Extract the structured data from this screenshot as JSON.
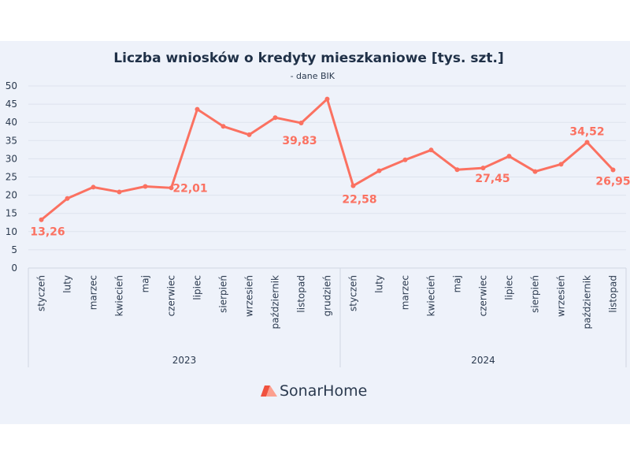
{
  "chart_data": {
    "type": "line",
    "title": "Liczba wniosków o kredyty mieszkaniowe [tys. szt.]",
    "subtitle": "- dane BIK",
    "ylim": [
      0,
      50
    ],
    "yticks": [
      0,
      5,
      10,
      15,
      20,
      25,
      30,
      35,
      40,
      45,
      50
    ],
    "grid": true,
    "color": "#fb7161",
    "groups": [
      {
        "label": "2023",
        "categories": [
          "styczeń",
          "luty",
          "marzec",
          "kwiecień",
          "maj",
          "czerwiec",
          "lipiec",
          "sierpień",
          "wrzesień",
          "październik",
          "listopad",
          "grudzień"
        ]
      },
      {
        "label": "2024",
        "categories": [
          "styczeń",
          "luty",
          "marzec",
          "kwiecień",
          "maj",
          "czerwiec",
          "lipiec",
          "sierpień",
          "wrzesień",
          "październik",
          "listopad"
        ]
      }
    ],
    "values": [
      13.26,
      19.1,
      22.2,
      20.9,
      22.4,
      22.01,
      43.6,
      38.9,
      36.6,
      41.3,
      39.83,
      46.4,
      22.58,
      26.7,
      29.7,
      32.4,
      27.0,
      27.45,
      30.7,
      26.5,
      28.5,
      34.52,
      26.95
    ],
    "data_labels": [
      {
        "index": 0,
        "text": "13,26"
      },
      {
        "index": 5,
        "text": "22,01"
      },
      {
        "index": 10,
        "text": "39,83"
      },
      {
        "index": 12,
        "text": "22,58"
      },
      {
        "index": 17,
        "text": "27,45"
      },
      {
        "index": 21,
        "text": "34,52"
      },
      {
        "index": 22,
        "text": "26,95"
      }
    ]
  },
  "logo": {
    "text": "SonarHome"
  }
}
